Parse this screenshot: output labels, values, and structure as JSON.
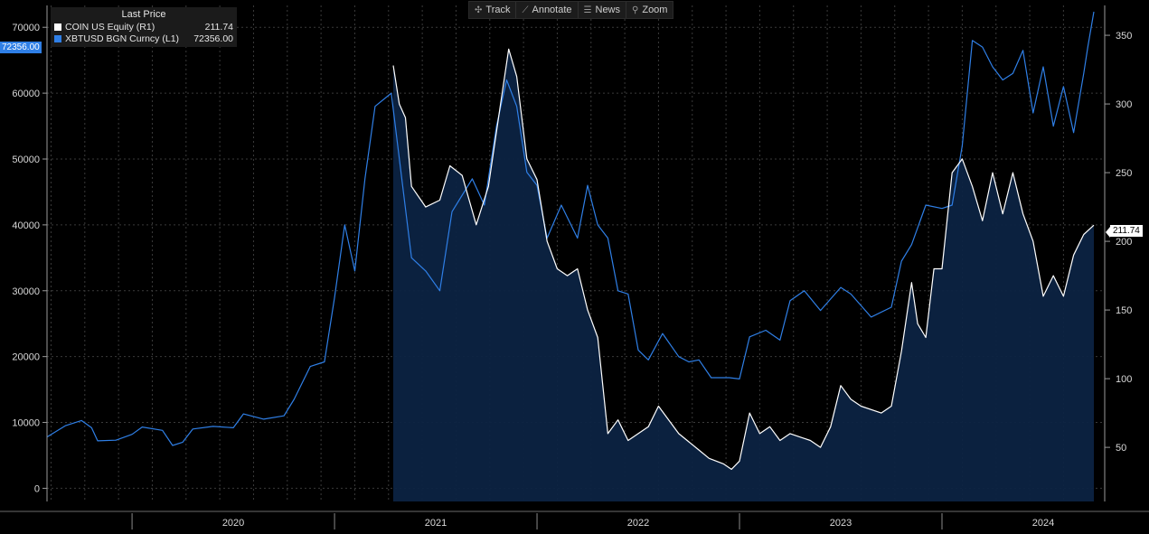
{
  "toolbar": {
    "track": {
      "label": "Track",
      "icon": "crosshair-icon"
    },
    "annotate": {
      "label": "Annotate",
      "icon": "pencil-icon"
    },
    "news": {
      "label": "News",
      "icon": "news-icon"
    },
    "zoom": {
      "label": "Zoom",
      "icon": "magnifier-icon"
    }
  },
  "legend": {
    "title": "Last Price",
    "rows": [
      {
        "name": "COIN US Equity  (R1)",
        "value": "211.74",
        "color": "#ffffff"
      },
      {
        "name": "XBTUSD BGN Curncy  (L1)",
        "value": "72356.00",
        "color": "#2f7fe6"
      }
    ]
  },
  "last_value_tags": {
    "left": "72356.00",
    "right": "211.74"
  },
  "chart_data": {
    "type": "line",
    "title": "",
    "x_label": "",
    "x_ticks": [
      "2020",
      "2021",
      "2022",
      "2023",
      "2024"
    ],
    "x_range": [
      2019.58,
      2024.75
    ],
    "left_axis": {
      "ylim": [
        -2000,
        72500
      ],
      "ticks": [
        0,
        10000,
        20000,
        30000,
        40000,
        50000,
        60000,
        70000
      ]
    },
    "right_axis": {
      "ylim": [
        10.6,
        367.8
      ],
      "ticks": [
        50,
        100,
        150,
        200,
        250,
        300,
        350
      ]
    },
    "series": [
      {
        "name": "XBTUSD BGN Curncy",
        "axis": "left",
        "color": "#2f7fe6",
        "points": [
          [
            2019.58,
            7800
          ],
          [
            2019.67,
            9500
          ],
          [
            2019.75,
            10300
          ],
          [
            2019.8,
            9200
          ],
          [
            2019.83,
            7200
          ],
          [
            2019.92,
            7300
          ],
          [
            2020.0,
            8200
          ],
          [
            2020.05,
            9300
          ],
          [
            2020.15,
            8800
          ],
          [
            2020.2,
            6500
          ],
          [
            2020.25,
            7000
          ],
          [
            2020.3,
            9000
          ],
          [
            2020.4,
            9400
          ],
          [
            2020.5,
            9200
          ],
          [
            2020.55,
            11300
          ],
          [
            2020.65,
            10500
          ],
          [
            2020.75,
            11000
          ],
          [
            2020.8,
            13500
          ],
          [
            2020.88,
            18500
          ],
          [
            2020.95,
            19200
          ],
          [
            2021.0,
            29000
          ],
          [
            2021.05,
            40000
          ],
          [
            2021.1,
            33000
          ],
          [
            2021.15,
            47000
          ],
          [
            2021.2,
            58000
          ],
          [
            2021.28,
            60000
          ],
          [
            2021.3,
            55000
          ],
          [
            2021.38,
            35000
          ],
          [
            2021.45,
            33000
          ],
          [
            2021.52,
            30000
          ],
          [
            2021.58,
            42000
          ],
          [
            2021.68,
            47000
          ],
          [
            2021.74,
            43000
          ],
          [
            2021.8,
            55000
          ],
          [
            2021.85,
            62000
          ],
          [
            2021.9,
            58000
          ],
          [
            2021.95,
            48000
          ],
          [
            2022.0,
            46000
          ],
          [
            2022.05,
            38000
          ],
          [
            2022.12,
            43000
          ],
          [
            2022.2,
            38000
          ],
          [
            2022.25,
            46000
          ],
          [
            2022.3,
            40000
          ],
          [
            2022.35,
            38000
          ],
          [
            2022.4,
            30000
          ],
          [
            2022.45,
            29500
          ],
          [
            2022.5,
            21000
          ],
          [
            2022.55,
            19500
          ],
          [
            2022.62,
            23500
          ],
          [
            2022.7,
            20000
          ],
          [
            2022.75,
            19200
          ],
          [
            2022.8,
            19500
          ],
          [
            2022.86,
            16800
          ],
          [
            2022.95,
            16800
          ],
          [
            2023.0,
            16600
          ],
          [
            2023.05,
            23000
          ],
          [
            2023.13,
            24000
          ],
          [
            2023.2,
            22500
          ],
          [
            2023.25,
            28500
          ],
          [
            2023.32,
            30000
          ],
          [
            2023.4,
            27000
          ],
          [
            2023.5,
            30500
          ],
          [
            2023.55,
            29500
          ],
          [
            2023.65,
            26000
          ],
          [
            2023.75,
            27500
          ],
          [
            2023.8,
            34500
          ],
          [
            2023.85,
            37000
          ],
          [
            2023.92,
            43000
          ],
          [
            2024.0,
            42500
          ],
          [
            2024.05,
            43000
          ],
          [
            2024.1,
            52000
          ],
          [
            2024.15,
            68000
          ],
          [
            2024.2,
            67000
          ],
          [
            2024.25,
            64000
          ],
          [
            2024.3,
            62000
          ],
          [
            2024.35,
            63000
          ],
          [
            2024.4,
            66500
          ],
          [
            2024.45,
            57000
          ],
          [
            2024.5,
            64000
          ],
          [
            2024.55,
            55000
          ],
          [
            2024.6,
            61000
          ],
          [
            2024.65,
            54000
          ],
          [
            2024.7,
            63000
          ],
          [
            2024.72,
            67000
          ],
          [
            2024.75,
            72356
          ]
        ]
      },
      {
        "name": "COIN US Equity",
        "axis": "right",
        "color": "#ffffff",
        "fill": "#0c2342",
        "points": [
          [
            2021.29,
            328
          ],
          [
            2021.32,
            300
          ],
          [
            2021.35,
            290
          ],
          [
            2021.38,
            240
          ],
          [
            2021.45,
            225
          ],
          [
            2021.52,
            230
          ],
          [
            2021.57,
            255
          ],
          [
            2021.63,
            248
          ],
          [
            2021.7,
            212
          ],
          [
            2021.76,
            240
          ],
          [
            2021.82,
            300
          ],
          [
            2021.86,
            340
          ],
          [
            2021.9,
            320
          ],
          [
            2021.95,
            260
          ],
          [
            2022.0,
            245
          ],
          [
            2022.05,
            200
          ],
          [
            2022.1,
            180
          ],
          [
            2022.15,
            175
          ],
          [
            2022.2,
            180
          ],
          [
            2022.25,
            150
          ],
          [
            2022.3,
            130
          ],
          [
            2022.35,
            60
          ],
          [
            2022.4,
            70
          ],
          [
            2022.45,
            55
          ],
          [
            2022.55,
            65
          ],
          [
            2022.6,
            80
          ],
          [
            2022.7,
            60
          ],
          [
            2022.8,
            48
          ],
          [
            2022.85,
            42
          ],
          [
            2022.92,
            38
          ],
          [
            2022.96,
            34
          ],
          [
            2023.0,
            40
          ],
          [
            2023.05,
            75
          ],
          [
            2023.1,
            60
          ],
          [
            2023.15,
            65
          ],
          [
            2023.2,
            55
          ],
          [
            2023.25,
            60
          ],
          [
            2023.35,
            55
          ],
          [
            2023.4,
            50
          ],
          [
            2023.45,
            65
          ],
          [
            2023.5,
            95
          ],
          [
            2023.55,
            85
          ],
          [
            2023.6,
            80
          ],
          [
            2023.7,
            75
          ],
          [
            2023.75,
            80
          ],
          [
            2023.8,
            120
          ],
          [
            2023.85,
            170
          ],
          [
            2023.88,
            140
          ],
          [
            2023.92,
            130
          ],
          [
            2023.96,
            180
          ],
          [
            2024.0,
            180
          ],
          [
            2024.05,
            250
          ],
          [
            2024.1,
            260
          ],
          [
            2024.15,
            240
          ],
          [
            2024.2,
            215
          ],
          [
            2024.25,
            250
          ],
          [
            2024.3,
            220
          ],
          [
            2024.35,
            250
          ],
          [
            2024.4,
            220
          ],
          [
            2024.45,
            200
          ],
          [
            2024.5,
            160
          ],
          [
            2024.55,
            175
          ],
          [
            2024.6,
            160
          ],
          [
            2024.65,
            190
          ],
          [
            2024.7,
            205
          ],
          [
            2024.75,
            211.74
          ]
        ]
      }
    ]
  }
}
